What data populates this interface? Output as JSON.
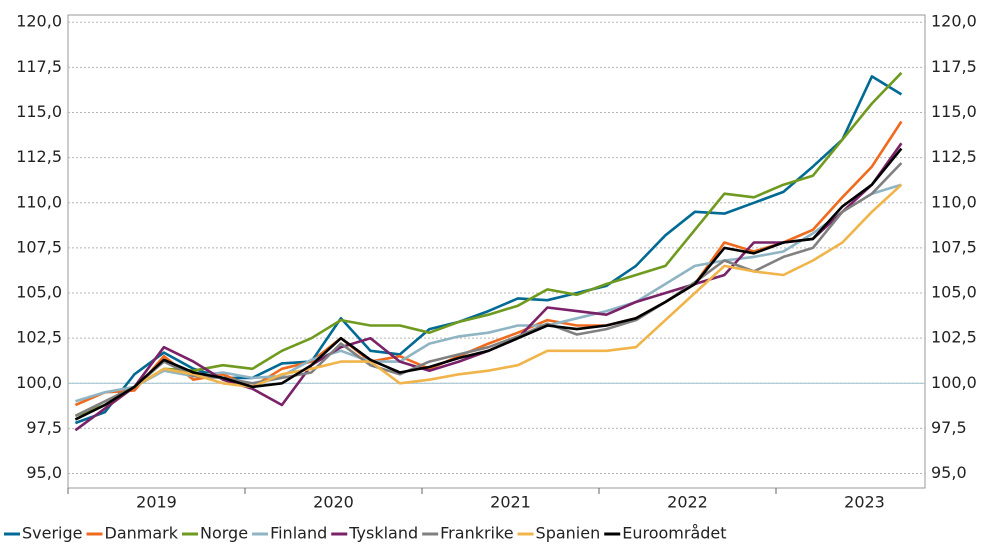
{
  "chart_data": {
    "type": "line",
    "categories": [
      null,
      null,
      null,
      "2019",
      null,
      null,
      null,
      null,
      null,
      "2020",
      null,
      null,
      null,
      null,
      null,
      "2021",
      null,
      null,
      null,
      null,
      null,
      "2022",
      null,
      null,
      null,
      null,
      null,
      "2023",
      null
    ],
    "ylim": [
      94.2,
      120.4
    ],
    "yticks": [
      {
        "value": 95,
        "label": "95,0"
      },
      {
        "value": 97.5,
        "label": "97,5"
      },
      {
        "value": 100,
        "label": "100,0"
      },
      {
        "value": 102.5,
        "label": "102,5"
      },
      {
        "value": 105,
        "label": "105,0"
      },
      {
        "value": 107.5,
        "label": "107,5"
      },
      {
        "value": 110,
        "label": "110,0"
      },
      {
        "value": 112.5,
        "label": "112,5"
      },
      {
        "value": 115,
        "label": "115,0"
      },
      {
        "value": 117.5,
        "label": "117,5"
      },
      {
        "value": 120,
        "label": "120,0"
      }
    ],
    "grid": true,
    "reference_line": 100,
    "series": [
      {
        "name": "Sverige",
        "color": "#006a94",
        "values": [
          97.8,
          98.4,
          100.5,
          101.7,
          100.8,
          100.3,
          100.3,
          101.1,
          101.2,
          103.6,
          101.8,
          101.6,
          103.0,
          103.4,
          104.0,
          104.7,
          104.6,
          105.0,
          105.4,
          106.5,
          108.2,
          109.5,
          109.4,
          110.0,
          110.6,
          112.0,
          113.5,
          117.0,
          116.0
        ]
      },
      {
        "name": "Danmark",
        "color": "#f06a1e",
        "values": [
          98.8,
          99.5,
          99.6,
          101.5,
          100.2,
          100.5,
          99.8,
          100.8,
          101.2,
          102.5,
          101.2,
          101.5,
          100.8,
          101.5,
          102.2,
          102.8,
          103.5,
          103.2,
          103.2,
          103.6,
          104.5,
          105.5,
          107.8,
          107.3,
          107.8,
          108.5,
          110.3,
          112.0,
          114.5
        ]
      },
      {
        "name": "Norge",
        "color": "#6f9a1f",
        "values": [
          98.2,
          98.8,
          99.8,
          100.8,
          100.7,
          101.0,
          100.8,
          101.8,
          102.5,
          103.5,
          103.2,
          103.2,
          102.8,
          103.4,
          103.8,
          104.3,
          105.2,
          104.9,
          105.5,
          106.0,
          106.5,
          108.5,
          110.5,
          110.3,
          111.0,
          111.5,
          113.5,
          115.5,
          117.2
        ]
      },
      {
        "name": "Finland",
        "color": "#8fb4c4",
        "values": [
          99.0,
          99.5,
          99.8,
          100.7,
          100.4,
          100.6,
          100.3,
          100.4,
          101.3,
          101.8,
          101.2,
          101.2,
          102.2,
          102.6,
          102.8,
          103.2,
          103.2,
          103.6,
          104.0,
          104.5,
          105.5,
          106.5,
          106.8,
          107.0,
          107.3,
          108.3,
          109.5,
          110.5,
          111.0
        ]
      },
      {
        "name": "Tyskland",
        "color": "#7a2168",
        "values": [
          97.4,
          98.6,
          99.8,
          102.0,
          101.2,
          100.2,
          99.7,
          98.8,
          101.0,
          102.0,
          102.5,
          101.2,
          100.7,
          101.2,
          101.8,
          102.5,
          104.2,
          104.0,
          103.8,
          104.5,
          105.0,
          105.5,
          106.0,
          107.8,
          107.8,
          108.0,
          109.5,
          111.0,
          113.3
        ]
      },
      {
        "name": "Frankrike",
        "color": "#808080",
        "values": [
          98.2,
          99.0,
          99.8,
          101.2,
          100.4,
          100.3,
          100.0,
          100.3,
          100.6,
          102.2,
          101.0,
          100.5,
          101.2,
          101.6,
          102.0,
          102.6,
          103.3,
          102.7,
          103.0,
          103.5,
          104.5,
          105.6,
          106.8,
          106.2,
          107.0,
          107.5,
          109.5,
          110.5,
          112.2
        ]
      },
      {
        "name": "Spanien",
        "color": "#f0b44a",
        "values": [
          98.0,
          98.8,
          99.8,
          100.8,
          100.5,
          100.0,
          99.8,
          100.5,
          100.8,
          101.2,
          101.2,
          100.0,
          100.2,
          100.5,
          100.7,
          101.0,
          101.8,
          101.8,
          101.8,
          102.0,
          103.5,
          105.0,
          106.5,
          106.2,
          106.0,
          106.8,
          107.8,
          109.5,
          111.0
        ]
      },
      {
        "name": "Euroområdet",
        "color": "#000000",
        "values": [
          98.0,
          98.8,
          99.8,
          101.3,
          100.6,
          100.3,
          99.8,
          100.0,
          101.0,
          102.5,
          101.3,
          100.6,
          100.9,
          101.4,
          101.8,
          102.5,
          103.2,
          103.0,
          103.2,
          103.6,
          104.5,
          105.5,
          107.5,
          107.2,
          107.8,
          108.0,
          109.8,
          111.0,
          113.0
        ]
      }
    ]
  }
}
